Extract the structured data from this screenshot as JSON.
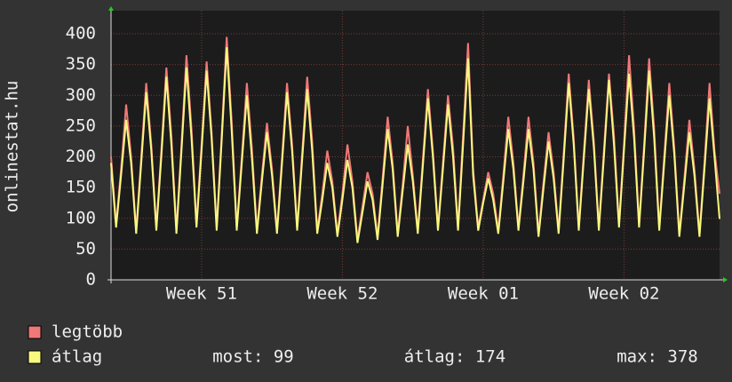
{
  "chart_data": {
    "type": "line",
    "y_label": "onlinestat.hu",
    "ylim": [
      0,
      400
    ],
    "yticks": [
      0,
      50,
      100,
      150,
      200,
      250,
      300,
      350,
      400
    ],
    "xlim": [
      0,
      121
    ],
    "xticks": [
      {
        "value": 18,
        "label": "Week 51"
      },
      {
        "value": 46,
        "label": "Week 52"
      },
      {
        "value": 74,
        "label": "Week 01"
      },
      {
        "value": 102,
        "label": "Week 02"
      }
    ],
    "grid": true,
    "series": [
      {
        "name": "legtöbb",
        "color": "#f07878",
        "values": [
          200,
          90,
          180,
          285,
          200,
          80,
          200,
          320,
          220,
          85,
          210,
          345,
          235,
          80,
          220,
          365,
          245,
          90,
          220,
          355,
          240,
          85,
          235,
          395,
          255,
          85,
          200,
          320,
          215,
          80,
          170,
          255,
          180,
          80,
          200,
          320,
          220,
          85,
          205,
          330,
          225,
          80,
          140,
          210,
          160,
          75,
          140,
          220,
          160,
          65,
          120,
          175,
          140,
          70,
          165,
          265,
          190,
          75,
          155,
          250,
          170,
          80,
          195,
          310,
          210,
          85,
          190,
          300,
          215,
          85,
          235,
          385,
          180,
          85,
          130,
          175,
          140,
          80,
          170,
          265,
          190,
          85,
          170,
          265,
          190,
          75,
          160,
          240,
          175,
          80,
          205,
          335,
          230,
          85,
          205,
          325,
          225,
          85,
          210,
          335,
          235,
          90,
          220,
          365,
          245,
          90,
          220,
          360,
          245,
          85,
          200,
          320,
          215,
          75,
          165,
          260,
          180,
          75,
          190,
          320,
          210,
          140
        ]
      },
      {
        "name": "átlag",
        "color": "#f8f880",
        "values": [
          190,
          85,
          170,
          260,
          190,
          75,
          190,
          305,
          210,
          80,
          200,
          330,
          220,
          75,
          210,
          345,
          230,
          85,
          210,
          340,
          230,
          80,
          225,
          378,
          240,
          80,
          190,
          300,
          200,
          75,
          160,
          240,
          170,
          75,
          190,
          305,
          210,
          80,
          195,
          310,
          210,
          75,
          130,
          190,
          150,
          70,
          130,
          195,
          150,
          60,
          110,
          160,
          130,
          65,
          155,
          245,
          180,
          70,
          145,
          220,
          160,
          75,
          185,
          295,
          200,
          80,
          180,
          285,
          200,
          80,
          220,
          360,
          170,
          80,
          125,
          165,
          130,
          75,
          160,
          245,
          180,
          80,
          160,
          245,
          180,
          70,
          150,
          225,
          165,
          75,
          195,
          320,
          220,
          80,
          195,
          310,
          215,
          80,
          200,
          325,
          220,
          85,
          210,
          335,
          230,
          85,
          210,
          340,
          230,
          80,
          190,
          300,
          205,
          70,
          155,
          240,
          170,
          70,
          180,
          295,
          200,
          99
        ]
      }
    ],
    "stats": [
      "most: 99",
      "átlag: 174",
      "max: 378"
    ]
  }
}
